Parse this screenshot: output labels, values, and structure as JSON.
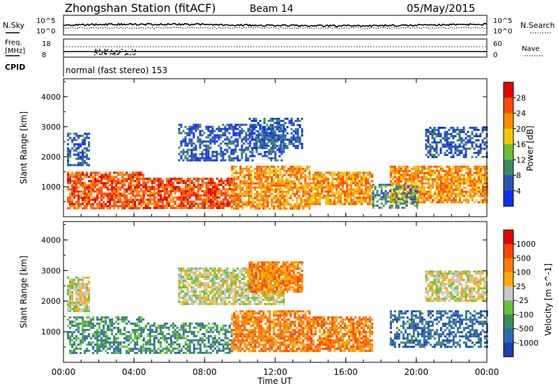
{
  "header": {
    "station": "Zhongshan Station (fitACF)",
    "beam": "Beam 14",
    "date": "05/May/2015"
  },
  "noise_panel": {
    "left_label": "N.Sky",
    "right_label": "N.Search",
    "left_ticks": [
      "10^5",
      "10^0"
    ],
    "right_ticks": [
      "10^5",
      "10^0"
    ]
  },
  "freq_panel": {
    "left_label": "Freq.",
    "left_unit": "[MHz]",
    "left_ticks": [
      "18",
      "8"
    ],
    "right_label": "Nave",
    "right_ticks": [
      "60",
      "0"
    ]
  },
  "cpid": {
    "label": "CPID",
    "mode": "normal (fast stereo) 153"
  },
  "chart_data": [
    {
      "type": "heatmap",
      "title": "",
      "ylabel": "Slant Range [km]",
      "xlabel": "",
      "ylim": [
        0,
        4600
      ],
      "yticks": [
        "1000",
        "2000",
        "3000",
        "4000"
      ],
      "xlim_hours": [
        0,
        24
      ],
      "colorbar": {
        "label": "Power [dB]",
        "ticks": [
          "4",
          "8",
          "12",
          "16",
          "20",
          "24",
          "28"
        ],
        "colors": [
          "#1030ff",
          "#2c52b8",
          "#3a8a62",
          "#6cbf3a",
          "#f0c800",
          "#ff8c00",
          "#ff4a00",
          "#e60000"
        ]
      },
      "regions": [
        {
          "t": [
            0.2,
            4.5
          ],
          "r": [
            300,
            1500
          ],
          "band": 6
        },
        {
          "t": [
            4.5,
            9.5
          ],
          "r": [
            300,
            1300
          ],
          "band": 6
        },
        {
          "t": [
            9.5,
            14.0
          ],
          "r": [
            300,
            1700
          ],
          "band": 5
        },
        {
          "t": [
            14.0,
            17.5
          ],
          "r": [
            400,
            1500
          ],
          "band": 5
        },
        {
          "t": [
            18.5,
            24.0
          ],
          "r": [
            500,
            1700
          ],
          "band": 5
        },
        {
          "t": [
            0.2,
            1.5
          ],
          "r": [
            1700,
            2800
          ],
          "band": 1
        },
        {
          "t": [
            6.5,
            12.5
          ],
          "r": [
            1900,
            3100
          ],
          "band": 1
        },
        {
          "t": [
            10.5,
            13.5
          ],
          "r": [
            2300,
            3300
          ],
          "band": 1
        },
        {
          "t": [
            20.5,
            24.0
          ],
          "r": [
            2000,
            3000
          ],
          "band": 1
        },
        {
          "t": [
            17.5,
            20.0
          ],
          "r": [
            300,
            1100
          ],
          "band": 2
        }
      ]
    },
    {
      "type": "heatmap",
      "title": "",
      "ylabel": "Slant Range [km]",
      "xlabel": "Time UT",
      "ylim": [
        0,
        4600
      ],
      "yticks": [
        "1000",
        "2000",
        "3000",
        "4000"
      ],
      "xticks": [
        "00:00",
        "04:00",
        "08:00",
        "12:00",
        "16:00",
        "20:00",
        "00:00"
      ],
      "xlim_hours": [
        0,
        24
      ],
      "colorbar": {
        "label": "Velocity [m s^-1]",
        "ticks": [
          "1000",
          "500",
          "100",
          "25",
          "-25",
          "-100",
          "-500",
          "-1000"
        ],
        "colors": [
          "#1c3fb0",
          "#2c6ab0",
          "#3a8a62",
          "#66c23a",
          "#c8c8c8",
          "#ffaa00",
          "#ff7a00",
          "#ff4400",
          "#e60000"
        ]
      },
      "regions": [
        {
          "t": [
            0.2,
            4.5
          ],
          "r": [
            300,
            1500
          ],
          "band": 2
        },
        {
          "t": [
            4.5,
            9.5
          ],
          "r": [
            300,
            1300
          ],
          "band": 2
        },
        {
          "t": [
            9.5,
            14.0
          ],
          "r": [
            400,
            1700
          ],
          "band": 6
        },
        {
          "t": [
            14.0,
            17.5
          ],
          "r": [
            400,
            1500
          ],
          "band": 6
        },
        {
          "t": [
            18.5,
            24.0
          ],
          "r": [
            500,
            1700
          ],
          "band": 1
        },
        {
          "t": [
            6.5,
            12.5
          ],
          "r": [
            1900,
            3100
          ],
          "band": 4
        },
        {
          "t": [
            10.5,
            13.5
          ],
          "r": [
            2300,
            3300
          ],
          "band": 6
        },
        {
          "t": [
            20.5,
            24.0
          ],
          "r": [
            2000,
            3000
          ],
          "band": 4
        },
        {
          "t": [
            0.2,
            1.5
          ],
          "r": [
            1700,
            2800
          ],
          "band": 4
        }
      ]
    }
  ]
}
